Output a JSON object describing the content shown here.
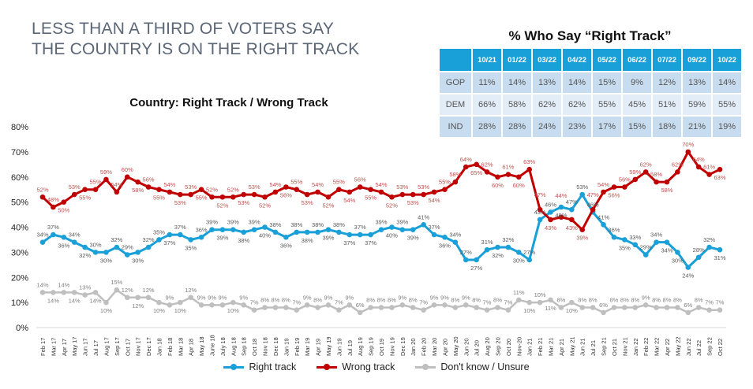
{
  "headline": [
    "LESS THAN A THIRD OF VOTERS SAY",
    "THE COUNTRY IS ON THE RIGHT TRACK"
  ],
  "table": {
    "title": "% Who Say “Right Track”",
    "columns": [
      "10/21",
      "01/22",
      "03/22",
      "04/22",
      "05/22",
      "06/22",
      "07/22",
      "09/22",
      "10/22"
    ],
    "rows": [
      {
        "label": "GOP",
        "values": [
          "11%",
          "14%",
          "13%",
          "14%",
          "15%",
          "9%",
          "12%",
          "13%",
          "14%"
        ]
      },
      {
        "label": "DEM",
        "values": [
          "66%",
          "58%",
          "62%",
          "62%",
          "55%",
          "45%",
          "51%",
          "59%",
          "55%"
        ]
      },
      {
        "label": "IND",
        "values": [
          "28%",
          "28%",
          "24%",
          "23%",
          "17%",
          "15%",
          "18%",
          "21%",
          "19%"
        ]
      }
    ]
  },
  "chart_data": {
    "type": "line",
    "title": "Country: Right Track / Wrong Track",
    "ylim": [
      0,
      80
    ],
    "yticks": [
      "0%",
      "10%",
      "20%",
      "30%",
      "40%",
      "50%",
      "60%",
      "70%",
      "80%"
    ],
    "grid": false,
    "legend": "bottom",
    "categories": [
      "Feb 17",
      "Mar 17",
      "Apr 17",
      "May 17",
      "Jun 17",
      "Jul 17",
      "Aug 17",
      "Sep 17",
      "Oct 17",
      "Nov 17",
      "Dec 17",
      "Jan 18",
      "Feb 18",
      "Mar 18",
      "Apr 18",
      "May 18",
      "June 18",
      "July 18",
      "Aug 18",
      "Sep 18",
      "Oct 18",
      "Nov 18",
      "Dec 18",
      "Jan 19",
      "Feb 19",
      "Mar 19",
      "Apr 19",
      "May 19",
      "Jun 19",
      "Jul 19",
      "Aug 19",
      "Sep 19",
      "Oct 19",
      "Nov 19",
      "Dec 19",
      "Jan 20",
      "Feb 20",
      "Mar 20",
      "Apr 20",
      "May 20",
      "Jun 20",
      "Jul 20",
      "Aug 20",
      "Sep 20",
      "Oct 20",
      "Nov-20",
      "Jan 21",
      "Feb 21",
      "Mar 21",
      "Apr 21",
      "May 21",
      "Jun 21",
      "Jul 21",
      "Sep 21",
      "Oct 21",
      "Nov 21",
      "Jan 22",
      "Feb 22",
      "Mar 22",
      "Apr 22",
      "May 22",
      "Jun 22",
      "Jul 22",
      "Sep 22",
      "Oct 22"
    ],
    "series": [
      {
        "name": "Right track",
        "color": "#1aa0d8",
        "label_color": "#595959",
        "values": [
          34,
          37,
          36,
          34,
          32,
          30,
          30,
          32,
          29,
          30,
          32,
          35,
          37,
          37,
          35,
          36,
          39,
          39,
          39,
          38,
          39,
          40,
          38,
          36,
          38,
          38,
          38,
          39,
          38,
          37,
          37,
          37,
          39,
          40,
          39,
          39,
          41,
          37,
          36,
          34,
          27,
          27,
          31,
          32,
          32,
          30,
          27,
          43,
          46,
          48,
          47,
          53,
          46,
          41,
          36,
          35,
          33,
          29,
          34,
          34,
          30,
          24,
          28,
          32,
          31
        ]
      },
      {
        "name": "Wrong track",
        "color": "#c00000",
        "label_color": "#c0504d",
        "values": [
          52,
          48,
          50,
          53,
          55,
          55,
          59,
          54,
          60,
          58,
          56,
          55,
          54,
          53,
          53,
          55,
          52,
          52,
          52,
          53,
          53,
          52,
          54,
          56,
          55,
          53,
          54,
          52,
          55,
          54,
          56,
          55,
          54,
          52,
          53,
          53,
          53,
          54,
          55,
          58,
          64,
          65,
          62,
          60,
          61,
          60,
          63,
          47,
          43,
          44,
          43,
          39,
          47,
          54,
          56,
          56,
          59,
          62,
          58,
          58,
          62,
          70,
          64,
          61,
          63
        ]
      },
      {
        "name": "Don't know / Unsure",
        "color": "#bfbfbf",
        "label_color": "#7f7f7f",
        "values": [
          14,
          14,
          14,
          14,
          13,
          14,
          10,
          15,
          12,
          12,
          12,
          10,
          9,
          10,
          12,
          9,
          9,
          9,
          10,
          9,
          7,
          8,
          8,
          8,
          7,
          9,
          8,
          9,
          7,
          9,
          6,
          8,
          8,
          8,
          9,
          8,
          7,
          9,
          9,
          8,
          9,
          8,
          7,
          8,
          7,
          11,
          10,
          10,
          11,
          8,
          10,
          8,
          8,
          6,
          8,
          8,
          8,
          9,
          8,
          8,
          8,
          6,
          8,
          7,
          7
        ]
      }
    ]
  }
}
